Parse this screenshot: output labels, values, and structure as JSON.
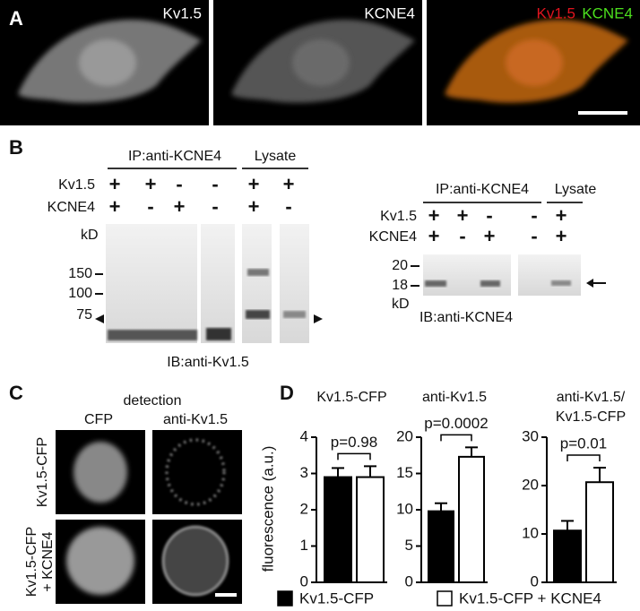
{
  "panel_a": {
    "label": "A",
    "images": [
      {
        "label": "Kv1.5"
      },
      {
        "label": "KCNE4"
      },
      {
        "label_red": "Kv1.5",
        "label_green": "KCNE4"
      }
    ]
  },
  "panel_b": {
    "label": "B",
    "left": {
      "ip_label": "IP:anti-KCNE4",
      "lysate_label": "Lysate",
      "rows": [
        {
          "label": "Kv1.5",
          "signs": [
            "+",
            "+",
            "-",
            "-",
            "+",
            "+"
          ]
        },
        {
          "label": "KCNE4",
          "signs": [
            "+",
            "-",
            "+",
            "-",
            "+",
            "-"
          ]
        }
      ],
      "markers": [
        "kD",
        "150",
        "100",
        "75"
      ],
      "ib_label": "IB:anti-Kv1.5"
    },
    "right": {
      "ip_label": "IP:anti-KCNE4",
      "lysate_label": "Lysate",
      "rows": [
        {
          "label": "Kv1.5",
          "signs": [
            "+",
            "+",
            "-",
            "-",
            "+"
          ]
        },
        {
          "label": "KCNE4",
          "signs": [
            "+",
            "-",
            "+",
            "-",
            "+"
          ]
        }
      ],
      "markers": [
        "20",
        "18",
        "kD"
      ],
      "ib_label": "IB:anti-KCNE4"
    }
  },
  "panel_c": {
    "label": "C",
    "header": "detection",
    "columns": [
      "CFP",
      "anti-Kv1.5"
    ],
    "rows": [
      [
        "Kv1.5-CFP"
      ],
      [
        "Kv1.5-CFP",
        "+ KCNE4"
      ]
    ]
  },
  "panel_d": {
    "label": "D"
  },
  "chart_data": [
    {
      "type": "bar",
      "title": "Kv1.5-CFP",
      "ylabel": "fluorescence (a.u.)",
      "ylim": [
        0,
        4
      ],
      "yticks": [
        0,
        1,
        2,
        3,
        4
      ],
      "series": [
        {
          "name": "Kv1.5-CFP",
          "color": "#000000",
          "values": [
            2.9
          ],
          "errors": [
            0.25
          ]
        },
        {
          "name": "Kv1.5-CFP + KCNE4",
          "color": "#ffffff",
          "values": [
            2.9
          ],
          "errors": [
            0.3
          ]
        }
      ],
      "annotations": [
        {
          "text": "p=0.98"
        }
      ]
    },
    {
      "type": "bar",
      "title": "anti-Kv1.5",
      "ylim": [
        0,
        20
      ],
      "yticks": [
        0,
        5,
        10,
        15,
        20
      ],
      "series": [
        {
          "color": "#000000",
          "values": [
            9.8
          ],
          "errors": [
            1.1
          ]
        },
        {
          "color": "#ffffff",
          "values": [
            17.3
          ],
          "errors": [
            1.3
          ]
        }
      ],
      "annotations": [
        {
          "text": "p=0.0002"
        }
      ]
    },
    {
      "type": "bar",
      "title": [
        "anti-Kv1.5/",
        "Kv1.5-CFP"
      ],
      "ylim": [
        0,
        30
      ],
      "yticks": [
        0,
        10,
        20,
        30
      ],
      "series": [
        {
          "color": "#000000",
          "values": [
            10.7
          ],
          "errors": [
            2
          ]
        },
        {
          "color": "#ffffff",
          "values": [
            20.7
          ],
          "errors": [
            3
          ]
        }
      ],
      "annotations": [
        {
          "text": "p=0.01"
        }
      ]
    }
  ]
}
